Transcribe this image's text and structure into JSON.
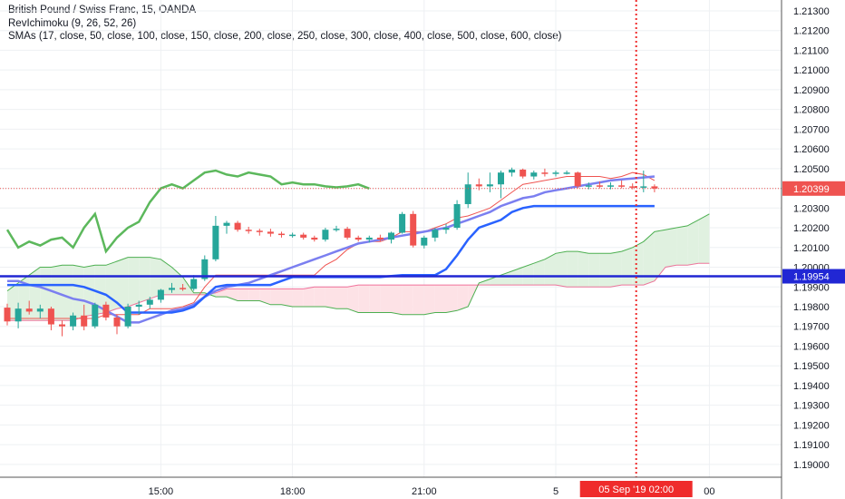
{
  "legend": {
    "symbol": "British Pound / Swiss Franc, 15, OANDA",
    "indicator1": "RevIchimoku (9, 26, 52, 26)",
    "indicator2": "SMAs (17, close, 50, close, 100, close, 150, close, 200, close, 250, close, 300, close, 400, close, 500, close, 600, close)"
  },
  "colors": {
    "up": "#26a69a",
    "down": "#ef5350",
    "sma": "#2962ff",
    "cloud_bull": "#e0f1e0",
    "cloud_bear": "#fde2e6",
    "price_label": "#ef5350",
    "hline_label": "#2127d4",
    "vline": "#ef2b2b",
    "green_line": "#5cb85c"
  },
  "chart_data": {
    "type": "candlestick",
    "y_ticks": [
      "1.21300",
      "1.21200",
      "1.21100",
      "1.21000",
      "1.20900",
      "1.20800",
      "1.20700",
      "1.20600",
      "1.20500",
      "1.20400",
      "1.20300",
      "1.20200",
      "1.20100",
      "1.20000",
      "1.19900",
      "1.19800",
      "1.19700",
      "1.19600",
      "1.19500",
      "1.19400",
      "1.19300",
      "1.19200",
      "1.19100",
      "1.19000"
    ],
    "ylim": [
      1.18935,
      1.21355
    ],
    "x_ticks": [
      {
        "label": "15:00",
        "bar": 14
      },
      {
        "label": "18:00",
        "bar": 26
      },
      {
        "label": "21:00",
        "bar": 38
      },
      {
        "label": "5",
        "bar": 50
      },
      {
        "label": "00",
        "bar": 64
      }
    ],
    "date_label": "05 Sep '19   02:00",
    "date_label_bar": 57,
    "current_price": "1.20399",
    "current_price_value": 1.20399,
    "hline_price": "1.19954",
    "hline_value": 1.19954,
    "candles": [
      [
        1.19795,
        1.19815,
        1.19705,
        1.19725
      ],
      [
        1.19725,
        1.1982,
        1.1969,
        1.1979
      ],
      [
        1.1979,
        1.1983,
        1.1976,
        1.19775
      ],
      [
        1.19775,
        1.1981,
        1.1974,
        1.1979
      ],
      [
        1.1979,
        1.198,
        1.1968,
        1.1971
      ],
      [
        1.1971,
        1.1973,
        1.1965,
        1.197
      ],
      [
        1.197,
        1.1977,
        1.1968,
        1.19755
      ],
      [
        1.19755,
        1.1981,
        1.1968,
        1.197
      ],
      [
        1.197,
        1.1982,
        1.1969,
        1.1981
      ],
      [
        1.1981,
        1.19825,
        1.1973,
        1.19745
      ],
      [
        1.19745,
        1.1976,
        1.1966,
        1.197
      ],
      [
        1.197,
        1.19815,
        1.1969,
        1.198
      ],
      [
        1.198,
        1.1983,
        1.1976,
        1.1981
      ],
      [
        1.1981,
        1.1985,
        1.1979,
        1.19835
      ],
      [
        1.19835,
        1.1989,
        1.1982,
        1.19885
      ],
      [
        1.19885,
        1.1992,
        1.1987,
        1.19895
      ],
      [
        1.19895,
        1.19915,
        1.1988,
        1.1989
      ],
      [
        1.1989,
        1.1996,
        1.1988,
        1.1994
      ],
      [
        1.1994,
        1.2006,
        1.1993,
        1.2004
      ],
      [
        1.2004,
        1.2026,
        1.2003,
        1.2021
      ],
      [
        1.2021,
        1.20235,
        1.2017,
        1.20225
      ],
      [
        1.20225,
        1.20235,
        1.2018,
        1.2019
      ],
      [
        1.2019,
        1.20205,
        1.2017,
        1.20185
      ],
      [
        1.20185,
        1.20195,
        1.2016,
        1.2018
      ],
      [
        1.2018,
        1.20195,
        1.20155,
        1.2017
      ],
      [
        1.2017,
        1.2018,
        1.2015,
        1.20165
      ],
      [
        1.20165,
        1.20175,
        1.2015,
        1.20165
      ],
      [
        1.20165,
        1.20175,
        1.2014,
        1.2015
      ],
      [
        1.2015,
        1.2016,
        1.2013,
        1.2014
      ],
      [
        1.2014,
        1.202,
        1.2013,
        1.2019
      ],
      [
        1.2019,
        1.2021,
        1.2018,
        1.20195
      ],
      [
        1.20195,
        1.20205,
        1.2014,
        1.2015
      ],
      [
        1.2015,
        1.2016,
        1.2013,
        1.2014
      ],
      [
        1.2014,
        1.2016,
        1.20125,
        1.2015
      ],
      [
        1.2015,
        1.20165,
        1.2013,
        1.2014
      ],
      [
        1.2014,
        1.2018,
        1.2012,
        1.20175
      ],
      [
        1.20175,
        1.2028,
        1.2017,
        1.2027
      ],
      [
        1.2027,
        1.20285,
        1.201,
        1.2011
      ],
      [
        1.2011,
        1.2016,
        1.20095,
        1.2015
      ],
      [
        1.2015,
        1.202,
        1.2013,
        1.2019
      ],
      [
        1.2019,
        1.2022,
        1.2017,
        1.202
      ],
      [
        1.202,
        1.2034,
        1.2019,
        1.2032
      ],
      [
        1.2032,
        1.2048,
        1.203,
        1.2042
      ],
      [
        1.2042,
        1.2045,
        1.2039,
        1.2041
      ],
      [
        1.2041,
        1.2048,
        1.2038,
        1.2042
      ],
      [
        1.2042,
        1.2049,
        1.2035,
        1.2048
      ],
      [
        1.2048,
        1.20505,
        1.2046,
        1.20495
      ],
      [
        1.20495,
        1.205,
        1.2045,
        1.2046
      ],
      [
        1.2046,
        1.2049,
        1.20445,
        1.2048
      ],
      [
        1.2048,
        1.205,
        1.2046,
        1.20475
      ],
      [
        1.20475,
        1.2049,
        1.2046,
        1.2048
      ],
      [
        1.2048,
        1.2049,
        1.2047,
        1.2048
      ],
      [
        1.2048,
        1.20485,
        1.204,
        1.2041
      ],
      [
        1.2041,
        1.2043,
        1.20395,
        1.20415
      ],
      [
        1.20415,
        1.20435,
        1.204,
        1.2041
      ],
      [
        1.2041,
        1.2043,
        1.20395,
        1.20415
      ],
      [
        1.20415,
        1.2044,
        1.204,
        1.2041
      ],
      [
        1.2041,
        1.20425,
        1.20395,
        1.20405
      ],
      [
        1.20405,
        1.2049,
        1.2038,
        1.2041
      ],
      [
        1.2041,
        1.2042,
        1.2038,
        1.20399
      ]
    ],
    "conversion": [
      1.1974,
      1.1974,
      1.1974,
      1.1974,
      1.1974,
      1.1974,
      1.1974,
      1.1974,
      1.1974,
      1.1976,
      1.1976,
      1.1976,
      1.1976,
      1.1979,
      1.1979,
      1.1979,
      1.198,
      1.1982,
      1.199,
      1.1996,
      1.1996,
      1.1996,
      1.1996,
      1.1996,
      1.1996,
      1.1996,
      1.1996,
      1.1996,
      1.1996,
      1.2001,
      1.2004,
      1.2009,
      1.2012,
      1.2013,
      1.2013,
      1.2015,
      1.2018,
      1.2018,
      1.2018,
      1.202,
      1.2022,
      1.2025,
      1.2026,
      1.2028,
      1.203,
      1.2034,
      1.2038,
      1.2042,
      1.2043,
      1.2044,
      1.2045,
      1.2046,
      1.2046,
      1.2046,
      1.2046,
      1.2045,
      1.2046,
      1.2048,
      1.2047,
      1.2044
    ],
    "lagging": [
      1.2019,
      1.201,
      1.2013,
      1.2011,
      1.2014,
      1.2015,
      1.201,
      1.202,
      1.2027,
      1.2008,
      1.2015,
      1.202,
      1.2023,
      1.2033,
      1.204,
      1.2042,
      1.204,
      1.2044,
      1.2048,
      1.2049,
      1.2047,
      1.2046,
      1.2048,
      1.2047,
      1.2046,
      1.2042,
      1.2043,
      1.2042,
      1.2042,
      1.2041,
      1.20405,
      1.2041,
      1.2042,
      1.20399
    ],
    "sma_a": [
      1.1993,
      1.1993,
      1.1991,
      1.199,
      1.1988,
      1.1986,
      1.1984,
      1.1983,
      1.1981,
      1.1978,
      1.1975,
      1.1972,
      1.1972,
      1.1974,
      1.1976,
      1.1978,
      1.1979,
      1.1981,
      1.1985,
      1.1988,
      1.199,
      1.1991,
      1.1992,
      1.1994,
      1.1996,
      1.1998,
      1.2,
      1.2002,
      1.2004,
      1.2006,
      1.2008,
      1.201,
      1.2012,
      1.2013,
      1.2014,
      1.2015,
      1.2016,
      1.2017,
      1.2018,
      1.2019,
      1.202,
      1.2022,
      1.2024,
      1.2026,
      1.2028,
      1.2031,
      1.2033,
      1.2035,
      1.2036,
      1.2038,
      1.2039,
      1.204,
      1.2041,
      1.2042,
      1.2043,
      1.2044,
      1.20445,
      1.2045,
      1.20455,
      1.2046
    ],
    "sma_b": [
      1.1991,
      1.1991,
      1.1991,
      1.1991,
      1.1991,
      1.1991,
      1.1991,
      1.199,
      1.1988,
      1.1986,
      1.1982,
      1.1977,
      1.1977,
      1.1977,
      1.1977,
      1.1977,
      1.1978,
      1.198,
      1.1985,
      1.199,
      1.1991,
      1.1991,
      1.1991,
      1.1991,
      1.1991,
      1.1993,
      1.1995,
      1.1995,
      1.1995,
      1.1995,
      1.1995,
      1.1995,
      1.1995,
      1.1995,
      1.1995,
      1.19955,
      1.1996,
      1.1996,
      1.1996,
      1.1996,
      1.1999,
      1.2006,
      1.2014,
      1.202,
      1.2022,
      1.2024,
      1.2028,
      1.203,
      1.2031,
      1.2031,
      1.2031,
      1.2031,
      1.2031,
      1.2031,
      1.2031,
      1.2031,
      1.2031,
      1.2031,
      1.2031,
      1.2031
    ],
    "span_a": [
      1.1988,
      1.1992,
      1.1996,
      1.2,
      1.2,
      1.2001,
      1.2001,
      1.2,
      1.2001,
      1.2001,
      1.2003,
      1.2005,
      1.2005,
      1.2005,
      1.2004,
      1.2,
      1.1995,
      1.1987,
      1.1987,
      1.1985,
      1.1985,
      1.1983,
      1.1983,
      1.1983,
      1.1981,
      1.1981,
      1.198,
      1.198,
      1.198,
      1.198,
      1.1979,
      1.1979,
      1.1977,
      1.1977,
      1.1977,
      1.1977,
      1.1976,
      1.1976,
      1.1976,
      1.1977,
      1.1977,
      1.1978,
      1.198,
      1.1992,
      1.1994,
      1.1996,
      1.1998,
      1.2,
      1.2002,
      1.2004,
      1.2007,
      1.2008,
      1.2008,
      1.2007,
      1.2007,
      1.2007,
      1.2008,
      1.201,
      1.2013,
      1.2018,
      1.2019,
      1.202,
      1.2021,
      1.2024,
      1.2027
    ],
    "span_b": [
      1.1973,
      1.1973,
      1.1973,
      1.1973,
      1.1973,
      1.1973,
      1.1973,
      1.1975,
      1.1976,
      1.1977,
      1.1979,
      1.198,
      1.1982,
      1.1984,
      1.1986,
      1.1986,
      1.1986,
      1.1986,
      1.1986,
      1.1987,
      1.1989,
      1.1989,
      1.1989,
      1.1989,
      1.1989,
      1.1989,
      1.1989,
      1.1989,
      1.199,
      1.199,
      1.199,
      1.199,
      1.1991,
      1.1991,
      1.1991,
      1.1991,
      1.1991,
      1.1991,
      1.1991,
      1.1991,
      1.1991,
      1.1991,
      1.1991,
      1.1991,
      1.1991,
      1.1991,
      1.1991,
      1.1991,
      1.1991,
      1.1991,
      1.1991,
      1.199,
      1.199,
      1.199,
      1.199,
      1.199,
      1.1991,
      1.1991,
      1.1991,
      1.1993,
      1.2,
      1.2001,
      1.2001,
      1.2002,
      1.2002
    ]
  }
}
